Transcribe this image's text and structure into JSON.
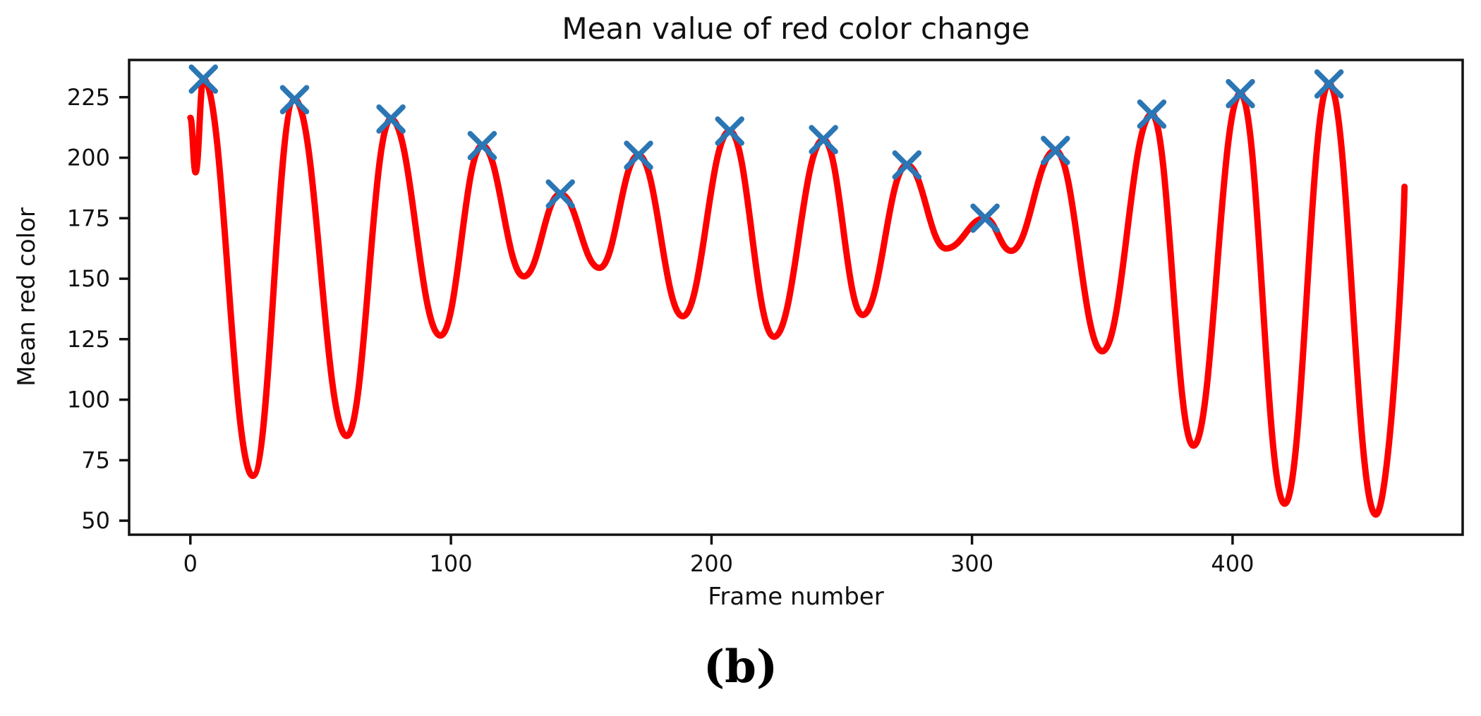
{
  "chart_data": {
    "type": "line",
    "title": "Mean value of red color change",
    "xlabel": "Frame number",
    "ylabel": "Mean red color",
    "caption": "(b)",
    "x_ticks": [
      0,
      100,
      200,
      300,
      400
    ],
    "y_ticks": [
      50,
      75,
      100,
      125,
      150,
      175,
      200,
      225
    ],
    "xlim": [
      -23.5,
      488.3
    ],
    "ylim": [
      44.2,
      240.4
    ],
    "grid": false,
    "legend": null,
    "axis_color": "#111111",
    "series": [
      {
        "name": "mean-red-curve",
        "type": "line",
        "color": "#ff0000",
        "line_width": 9,
        "points": [
          [
            0,
            216.5
          ],
          [
            2,
            194
          ],
          [
            5,
            232.5
          ],
          [
            24,
            68.5
          ],
          [
            40,
            224
          ],
          [
            60,
            85
          ],
          [
            77,
            216
          ],
          [
            96,
            126.5
          ],
          [
            112,
            205
          ],
          [
            128,
            151
          ],
          [
            142,
            185
          ],
          [
            157,
            154.5
          ],
          [
            172,
            201
          ],
          [
            189,
            134.5
          ],
          [
            207,
            211
          ],
          [
            224,
            126
          ],
          [
            243,
            207.5
          ],
          [
            258,
            135
          ],
          [
            275,
            197
          ],
          [
            290,
            162.5
          ],
          [
            305,
            175
          ],
          [
            315,
            161.5
          ],
          [
            332,
            203
          ],
          [
            350,
            120
          ],
          [
            369,
            218
          ],
          [
            385,
            81
          ],
          [
            403,
            226.5
          ],
          [
            420,
            57
          ],
          [
            437,
            230.5
          ],
          [
            455,
            52.5
          ],
          [
            466,
            188
          ]
        ]
      },
      {
        "name": "detected-peaks",
        "type": "scatter",
        "marker": "x",
        "color": "#2b76b4",
        "marker_size": 34,
        "points": [
          [
            5,
            232.5
          ],
          [
            40,
            224
          ],
          [
            77,
            216
          ],
          [
            112,
            205
          ],
          [
            142,
            185
          ],
          [
            172,
            201
          ],
          [
            207,
            211
          ],
          [
            243,
            207.5
          ],
          [
            275,
            197
          ],
          [
            305,
            175
          ],
          [
            332,
            203
          ],
          [
            369,
            218
          ],
          [
            403,
            226.5
          ],
          [
            437,
            230.5
          ]
        ]
      }
    ]
  }
}
